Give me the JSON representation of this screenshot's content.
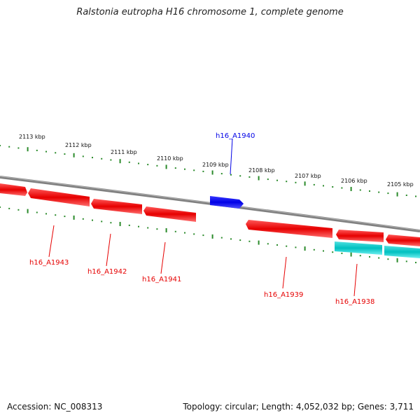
{
  "title": "Ralstonia eutropha H16 chromosome 1, complete genome",
  "footer": {
    "accession": "Accession: NC_008313",
    "summary": "Topology: circular; Length: 4,052,032 bp; Genes: 3,711"
  },
  "colors": {
    "reverse_gene": "#e60000",
    "forward_gene": "#0000e6",
    "other_gene": "#00c0c0",
    "tick": "#2a8a2a",
    "backbone": "#808080"
  },
  "scale_labels": [
    "2113 kbp",
    "2112 kbp",
    "2111 kbp",
    "2110 kbp",
    "2109 kbp",
    "2108 kbp",
    "2107 kbp",
    "2106 kbp",
    "2105 kbp"
  ],
  "gene_labels": [
    {
      "name": "h16_A1940",
      "color": "blue"
    },
    {
      "name": "h16_A1943",
      "color": "red"
    },
    {
      "name": "h16_A1942",
      "color": "red"
    },
    {
      "name": "h16_A1941",
      "color": "red"
    },
    {
      "name": "h16_A1939",
      "color": "red"
    },
    {
      "name": "h16_A1938",
      "color": "red"
    }
  ]
}
